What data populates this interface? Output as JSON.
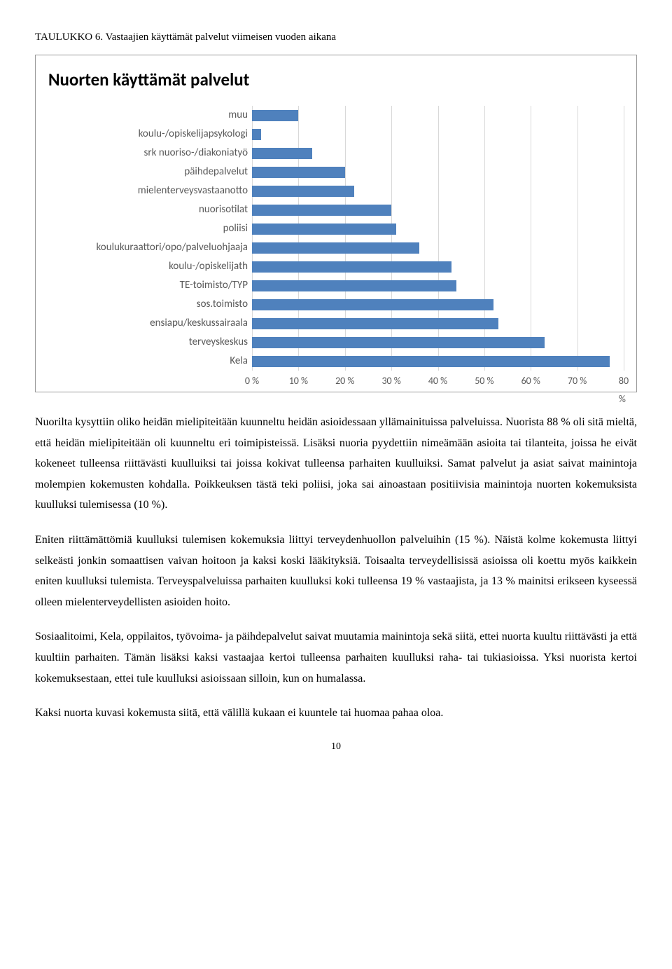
{
  "caption": "TAULUKKO 6. Vastaajien käyttämät palvelut viimeisen vuoden aikana",
  "chart": {
    "type": "bar-horizontal",
    "title": "Nuorten käyttämät palvelut",
    "bar_color": "#4f81bd",
    "grid_color": "#d9d9d9",
    "label_color": "#595959",
    "label_fontsize": 15,
    "title_fontsize": 25,
    "xmin": 0,
    "xmax": 80,
    "xtick_step": 10,
    "xtick_labels": [
      "0 %",
      "10 %",
      "20 %",
      "30 %",
      "40 %",
      "50 %",
      "60 %",
      "70 %",
      "80 %"
    ],
    "categories": [
      "muu",
      "koulu-/opiskelijapsykologi",
      "srk nuoriso-/diakoniatyö",
      "päihdepalvelut",
      "mielenterveysvastaanotto",
      "nuorisotilat",
      "poliisi",
      "koulukuraattori/opo/palveluohjaaja",
      "koulu-/opiskelijath",
      "TE-toimisto/TYP",
      "sos.toimisto",
      "ensiapu/keskussairaala",
      "terveyskeskus",
      "Kela"
    ],
    "values": [
      10,
      2,
      13,
      20,
      22,
      30,
      31,
      36,
      43,
      44,
      52,
      53,
      63,
      77
    ]
  },
  "paragraphs": {
    "p1": "Nuorilta kysyttiin oliko heidän mielipiteitään kuunneltu heidän asioidessaan yllämainituissa palveluissa. Nuorista 88 % oli sitä mieltä, että heidän mielipiteitään oli kuunneltu eri toimipisteissä. Lisäksi nuoria pyydettiin nimeämään asioita tai tilanteita, joissa he eivät kokeneet tulleensa riittävästi kuulluiksi tai joissa kokivat tulleensa parhaiten kuulluiksi. Samat palvelut ja asiat saivat mainintoja molempien kokemusten kohdalla. Poikkeuksen tästä teki poliisi, joka sai ainoastaan positiivisia mainintoja nuorten kokemuksista kuulluksi tulemisessa (10 %).",
    "p2": "Eniten riittämättömiä kuulluksi tulemisen kokemuksia liittyi terveydenhuollon palveluihin (15 %). Näistä kolme kokemusta liittyi selkeästi jonkin somaattisen vaivan hoitoon ja kaksi koski lääkityksiä. Toisaalta terveydellisissä asioissa oli koettu myös kaikkein eniten kuulluksi tulemista. Terveyspalveluissa parhaiten kuulluksi koki tulleensa 19 % vastaajista, ja 13 % mainitsi erikseen kyseessä olleen mielenterveydellisten asioiden hoito.",
    "p3": "Sosiaalitoimi, Kela, oppilaitos, työvoima- ja päihdepalvelut saivat muutamia mainintoja sekä siitä, ettei nuorta kuultu riittävästi ja että kuultiin parhaiten. Tämän lisäksi kaksi vastaajaa kertoi tulleensa parhaiten kuulluksi raha- tai tukiasioissa. Yksi nuorista kertoi kokemuksestaan, ettei tule kuulluksi asioissaan silloin, kun on humalassa.",
    "p4": "Kaksi nuorta kuvasi kokemusta siitä, että välillä kukaan ei kuuntele tai huomaa pahaa oloa."
  },
  "page_number": "10"
}
